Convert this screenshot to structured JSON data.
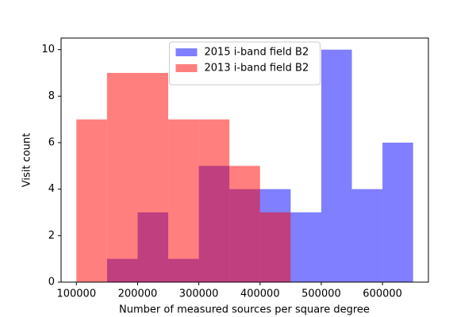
{
  "chart_data": {
    "type": "histogram",
    "xlabel": "Number of measured sources per square degree",
    "ylabel": "Visit count",
    "bins": [
      100000,
      150000,
      200000,
      250000,
      300000,
      350000,
      400000,
      450000,
      500000,
      550000,
      600000,
      650000
    ],
    "series": [
      {
        "name": "2015 i-band field B2",
        "color": "#0000ff",
        "values": [
          0,
          1,
          3,
          1,
          5,
          4,
          4,
          3,
          10,
          4,
          6
        ]
      },
      {
        "name": "2013 i-band field B2",
        "color": "#ff0000",
        "values": [
          7,
          9,
          9,
          7,
          7,
          5,
          3,
          0,
          0,
          0,
          0
        ]
      }
    ],
    "alpha": 0.5,
    "xlim": [
      75000,
      675000
    ],
    "ylim": [
      0,
      10.5
    ],
    "xticks": [
      100000,
      200000,
      300000,
      400000,
      500000,
      600000
    ],
    "yticks": [
      0,
      2,
      4,
      6,
      8,
      10
    ],
    "legend": "upper center"
  }
}
